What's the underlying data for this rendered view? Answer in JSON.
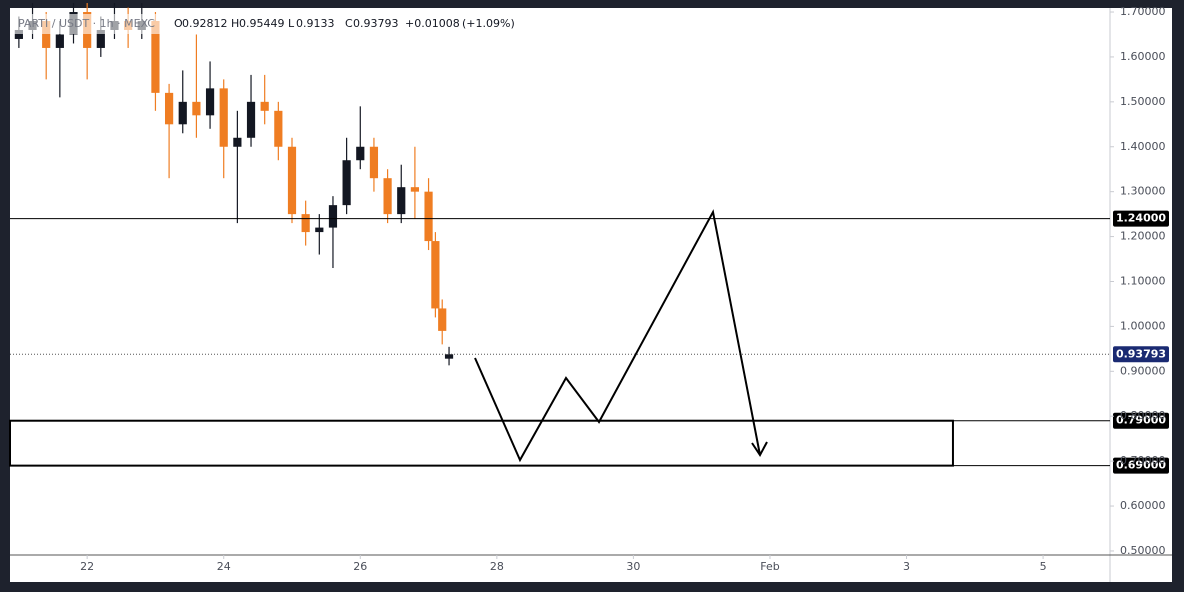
{
  "chart_data": {
    "type": "candlestick",
    "symbol": "PARTI / USDT · 1h · MEXC",
    "legend_letters": [
      "O",
      "H",
      "L",
      "C"
    ],
    "change": {
      "value": 0.01008,
      "label": "+0.01008"
    },
    "change_pct": {
      "value": 1.09,
      "label": "(+1.09%)"
    },
    "x": [
      21.0,
      21.2,
      21.4,
      21.6,
      21.8,
      22.0,
      22.2,
      22.4,
      22.6,
      22.8,
      23.0,
      23.2,
      23.4,
      23.6,
      23.8,
      24.0,
      24.2,
      24.4,
      24.6,
      24.8,
      25.0,
      25.2,
      25.4,
      25.6,
      25.8,
      26.0,
      26.2,
      26.4,
      26.6,
      26.8,
      27.0,
      27.1,
      27.2,
      27.3
    ],
    "open": [
      1.64,
      1.66,
      1.68,
      1.62,
      1.65,
      1.7,
      1.62,
      1.66,
      1.68,
      1.66,
      1.68,
      1.52,
      1.45,
      1.5,
      1.47,
      1.53,
      1.4,
      1.42,
      1.5,
      1.48,
      1.4,
      1.25,
      1.21,
      1.22,
      1.27,
      1.37,
      1.4,
      1.33,
      1.25,
      1.31,
      1.3,
      1.19,
      1.04,
      0.92812
    ],
    "high": [
      1.69,
      1.72,
      1.7,
      1.68,
      1.72,
      1.72,
      1.69,
      1.72,
      1.71,
      1.72,
      1.7,
      1.54,
      1.57,
      1.65,
      1.59,
      1.55,
      1.48,
      1.56,
      1.56,
      1.5,
      1.42,
      1.28,
      1.25,
      1.29,
      1.42,
      1.49,
      1.42,
      1.35,
      1.36,
      1.4,
      1.33,
      1.21,
      1.06,
      0.95449
    ],
    "low": [
      1.62,
      1.64,
      1.55,
      1.51,
      1.63,
      1.55,
      1.6,
      1.64,
      1.62,
      1.64,
      1.48,
      1.33,
      1.43,
      1.42,
      1.44,
      1.33,
      1.23,
      1.4,
      1.45,
      1.37,
      1.23,
      1.18,
      1.16,
      1.13,
      1.25,
      1.35,
      1.3,
      1.23,
      1.23,
      1.24,
      1.17,
      1.02,
      0.96,
      0.9133
    ],
    "close": [
      1.66,
      1.68,
      1.62,
      1.65,
      1.7,
      1.62,
      1.66,
      1.68,
      1.66,
      1.68,
      1.52,
      1.45,
      1.5,
      1.47,
      1.53,
      1.4,
      1.42,
      1.5,
      1.48,
      1.4,
      1.25,
      1.21,
      1.22,
      1.27,
      1.37,
      1.4,
      1.33,
      1.25,
      1.31,
      1.3,
      1.19,
      1.04,
      0.99,
      0.93793
    ],
    "up_color": "#131722",
    "down_color": "#ef7d22",
    "xlim": [
      20.87,
      36.98
    ],
    "xticks": [
      22,
      24,
      26,
      28,
      30,
      {
        "value": 32,
        "label": "Feb"
      },
      {
        "value": 34,
        "label": "3"
      },
      {
        "value": 36,
        "label": "5"
      }
    ],
    "ylim": [
      0.491,
      1.7045
    ],
    "yticks": [
      {
        "value": 0.5,
        "label": "0.50000"
      },
      {
        "value": 0.6,
        "label": "0.60000"
      },
      {
        "value": 0.7,
        "label": "0.70000"
      },
      {
        "value": 0.8,
        "label": "0.80000"
      },
      {
        "value": 0.9,
        "label": "0.90000"
      },
      {
        "value": 1.0,
        "label": "1.00000"
      },
      {
        "value": 1.1,
        "label": "1.10000"
      },
      {
        "value": 1.2,
        "label": "1.20000"
      },
      {
        "value": 1.3,
        "label": "1.30000"
      },
      {
        "value": 1.4,
        "label": "1.40000"
      },
      {
        "value": 1.5,
        "label": "1.50000"
      },
      {
        "value": 1.6,
        "label": "1.60000"
      },
      {
        "value": 1.7,
        "label": "1.70000"
      }
    ],
    "levels": [
      {
        "value": 1.24,
        "label": "1.24000"
      },
      {
        "value": 0.79,
        "label": "0.79000"
      },
      {
        "value": 0.69,
        "label": "0.69000"
      }
    ],
    "last_price": {
      "value": 0.93793,
      "label": "0.93793",
      "color": "#1a2a72"
    },
    "zone": {
      "high": 0.79,
      "low": 0.69,
      "end": 34.68
    }
  }
}
